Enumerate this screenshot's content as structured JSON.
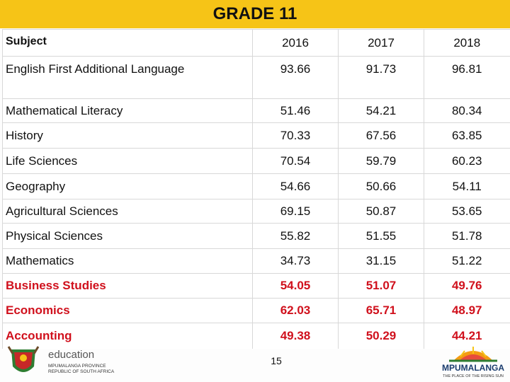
{
  "title": "GRADE 11",
  "table": {
    "headers": [
      "Subject",
      "2016",
      "2017",
      "2018"
    ],
    "rows": [
      {
        "subject": "English First Additional Language",
        "v2016": "93.66",
        "v2017": "91.73",
        "v2018": "96.81",
        "highlight": false
      },
      {
        "subject": "Mathematical Literacy",
        "v2016": "51.46",
        "v2017": "54.21",
        "v2018": "80.34",
        "highlight": false
      },
      {
        "subject": "History",
        "v2016": "70.33",
        "v2017": "67.56",
        "v2018": "63.85",
        "highlight": false
      },
      {
        "subject": "Life Sciences",
        "v2016": "70.54",
        "v2017": "59.79",
        "v2018": "60.23",
        "highlight": false
      },
      {
        "subject": "Geography",
        "v2016": "54.66",
        "v2017": "50.66",
        "v2018": "54.11",
        "highlight": false
      },
      {
        "subject": "Agricultural Sciences",
        "v2016": "69.15",
        "v2017": "50.87",
        "v2018": "53.65",
        "highlight": false
      },
      {
        "subject": "Physical Sciences",
        "v2016": "55.82",
        "v2017": "51.55",
        "v2018": "51.78",
        "highlight": false
      },
      {
        "subject": "Mathematics",
        "v2016": "34.73",
        "v2017": "31.15",
        "v2018": "51.22",
        "highlight": false
      },
      {
        "subject": "Business Studies",
        "v2016": "54.05",
        "v2017": "51.07",
        "v2018": "49.76",
        "highlight": true
      },
      {
        "subject": "Economics",
        "v2016": "62.03",
        "v2017": "65.71",
        "v2018": "48.97",
        "highlight": true
      },
      {
        "subject": "Accounting",
        "v2016": "49.38",
        "v2017": "50.29",
        "v2018": "44.21",
        "highlight": true
      }
    ]
  },
  "footer": {
    "education_logo": {
      "word": "education",
      "line1": "MPUMALANGA PROVINCE",
      "line2": "REPUBLIC OF SOUTH AFRICA"
    },
    "page_number": "15",
    "province_logo": {
      "word": "MPUMALANGA",
      "tagline": "THE PLACE OF THE RISING SUN"
    }
  },
  "colors": {
    "title_bar": "#f6c417",
    "highlight_text": "#d0101c",
    "grid_line": "#d8d8d8"
  }
}
